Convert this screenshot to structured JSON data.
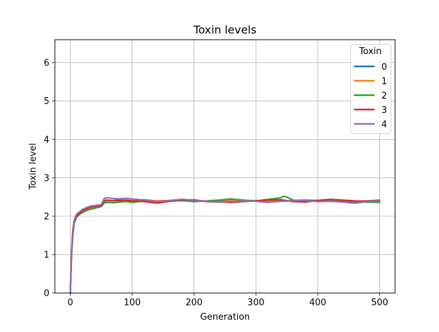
{
  "chart_data": {
    "type": "line",
    "title": "Toxin levels",
    "xlabel": "Generation",
    "ylabel": "Toxin level",
    "xlim": [
      -25,
      525
    ],
    "ylim": [
      0,
      6.6
    ],
    "xticks": [
      0,
      100,
      200,
      300,
      400,
      500
    ],
    "yticks": [
      0,
      1,
      2,
      3,
      4,
      5,
      6
    ],
    "grid": true,
    "legend": {
      "title": "Toxin",
      "placement": "top-right"
    },
    "series": [
      {
        "name": "0",
        "color": "#1f77b4",
        "x": [
          0,
          2,
          4,
          6,
          8,
          10,
          15,
          20,
          25,
          30,
          35,
          40,
          45,
          50,
          55,
          60,
          70,
          80,
          90,
          100,
          120,
          140,
          160,
          180,
          200,
          220,
          240,
          260,
          280,
          300,
          320,
          340,
          360,
          380,
          400,
          420,
          440,
          460,
          480,
          500
        ],
        "y": [
          0.0,
          1.1,
          1.6,
          1.85,
          1.95,
          2.02,
          2.1,
          2.16,
          2.2,
          2.23,
          2.25,
          2.26,
          2.27,
          2.28,
          2.4,
          2.41,
          2.41,
          2.42,
          2.41,
          2.4,
          2.41,
          2.39,
          2.4,
          2.42,
          2.4,
          2.39,
          2.41,
          2.4,
          2.39,
          2.4,
          2.38,
          2.4,
          2.41,
          2.42,
          2.41,
          2.4,
          2.39,
          2.38,
          2.4,
          2.42
        ]
      },
      {
        "name": "1",
        "color": "#ff7f0e",
        "x": [
          0,
          2,
          4,
          6,
          8,
          10,
          15,
          20,
          25,
          30,
          35,
          40,
          45,
          50,
          55,
          60,
          70,
          80,
          90,
          100,
          120,
          140,
          160,
          180,
          200,
          220,
          240,
          260,
          280,
          300,
          320,
          340,
          360,
          380,
          400,
          420,
          440,
          460,
          480,
          500
        ],
        "y": [
          0.0,
          1.05,
          1.55,
          1.82,
          1.93,
          2.0,
          2.08,
          2.14,
          2.18,
          2.21,
          2.23,
          2.24,
          2.25,
          2.26,
          2.38,
          2.4,
          2.4,
          2.41,
          2.42,
          2.41,
          2.43,
          2.4,
          2.41,
          2.4,
          2.41,
          2.4,
          2.42,
          2.41,
          2.4,
          2.41,
          2.39,
          2.4,
          2.41,
          2.39,
          2.4,
          2.42,
          2.41,
          2.39,
          2.36,
          2.38
        ]
      },
      {
        "name": "2",
        "color": "#2ca02c",
        "x": [
          0,
          2,
          4,
          6,
          8,
          10,
          15,
          20,
          25,
          30,
          35,
          40,
          45,
          50,
          55,
          60,
          70,
          80,
          90,
          100,
          120,
          140,
          160,
          180,
          200,
          220,
          240,
          260,
          280,
          300,
          320,
          340,
          345,
          350,
          360,
          380,
          400,
          420,
          440,
          460,
          480,
          500
        ],
        "y": [
          0.0,
          1.0,
          1.5,
          1.8,
          1.9,
          1.98,
          2.05,
          2.1,
          2.14,
          2.17,
          2.19,
          2.21,
          2.23,
          2.25,
          2.35,
          2.36,
          2.35,
          2.37,
          2.38,
          2.36,
          2.4,
          2.38,
          2.39,
          2.41,
          2.38,
          2.4,
          2.42,
          2.45,
          2.42,
          2.4,
          2.44,
          2.48,
          2.52,
          2.5,
          2.42,
          2.4,
          2.41,
          2.43,
          2.4,
          2.38,
          2.37,
          2.36
        ]
      },
      {
        "name": "3",
        "color": "#d62728",
        "x": [
          0,
          2,
          4,
          6,
          8,
          10,
          15,
          20,
          25,
          30,
          35,
          40,
          45,
          50,
          55,
          60,
          70,
          80,
          90,
          100,
          120,
          140,
          160,
          180,
          200,
          220,
          240,
          260,
          280,
          300,
          320,
          340,
          360,
          380,
          400,
          420,
          440,
          460,
          480,
          500
        ],
        "y": [
          0.0,
          1.08,
          1.6,
          1.84,
          1.94,
          2.0,
          2.09,
          2.15,
          2.19,
          2.22,
          2.24,
          2.26,
          2.27,
          2.28,
          2.41,
          2.42,
          2.4,
          2.41,
          2.42,
          2.4,
          2.38,
          2.34,
          2.39,
          2.42,
          2.43,
          2.38,
          2.37,
          2.36,
          2.38,
          2.4,
          2.42,
          2.43,
          2.38,
          2.37,
          2.41,
          2.44,
          2.42,
          2.4,
          2.39,
          2.41
        ]
      },
      {
        "name": "4",
        "color": "#9467bd",
        "x": [
          0,
          2,
          4,
          6,
          8,
          10,
          15,
          20,
          25,
          30,
          35,
          40,
          45,
          50,
          55,
          60,
          70,
          80,
          90,
          100,
          120,
          140,
          160,
          180,
          200,
          220,
          240,
          260,
          280,
          300,
          320,
          340,
          360,
          380,
          400,
          420,
          440,
          460,
          480,
          500
        ],
        "y": [
          0.0,
          1.12,
          1.65,
          1.88,
          1.98,
          2.05,
          2.12,
          2.18,
          2.22,
          2.25,
          2.27,
          2.28,
          2.29,
          2.3,
          2.47,
          2.48,
          2.46,
          2.45,
          2.47,
          2.45,
          2.42,
          2.38,
          2.41,
          2.44,
          2.42,
          2.39,
          2.37,
          2.38,
          2.4,
          2.39,
          2.36,
          2.39,
          2.4,
          2.41,
          2.38,
          2.39,
          2.37,
          2.34,
          2.38,
          2.4
        ]
      }
    ]
  }
}
